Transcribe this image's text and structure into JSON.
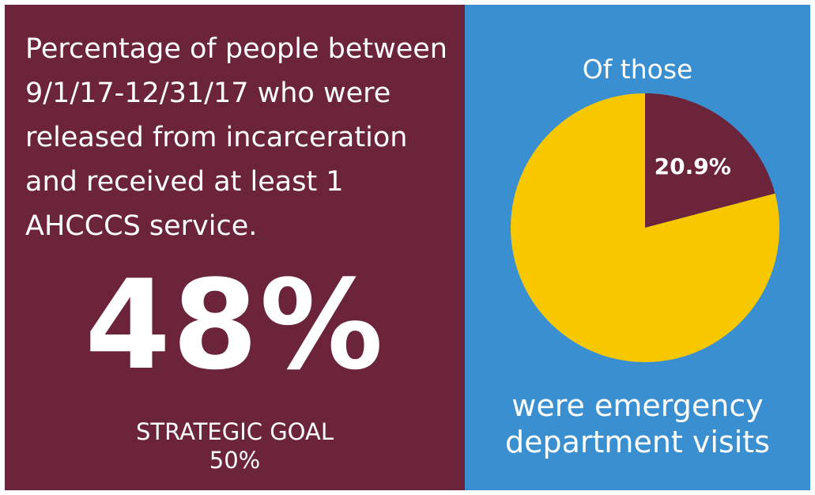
{
  "left": {
    "headline": "Percentage of people between 9/1/17-12/31/17 who were released from incarceration and received at least 1 AHCCCS service.",
    "big_value": "48%",
    "goal_label": "STRATEGIC GOAL",
    "goal_value": "50%"
  },
  "right": {
    "intro": "Of those",
    "caption_line1": "were emergency",
    "caption_line2": "department visits"
  },
  "colors": {
    "left_background": "#6b2439",
    "right_background": "#3a8fd0",
    "pie_highlight": "#6b2439",
    "pie_remainder": "#f7c800",
    "text": "#ffffff"
  },
  "chart_data": {
    "type": "pie",
    "slices": [
      {
        "value": 20.9,
        "label": "20.9%",
        "color": "#6b2439"
      },
      {
        "value": 79.1,
        "label": "",
        "color": "#f7c800"
      }
    ],
    "start_angle_deg": 0,
    "direction": "clockwise"
  }
}
